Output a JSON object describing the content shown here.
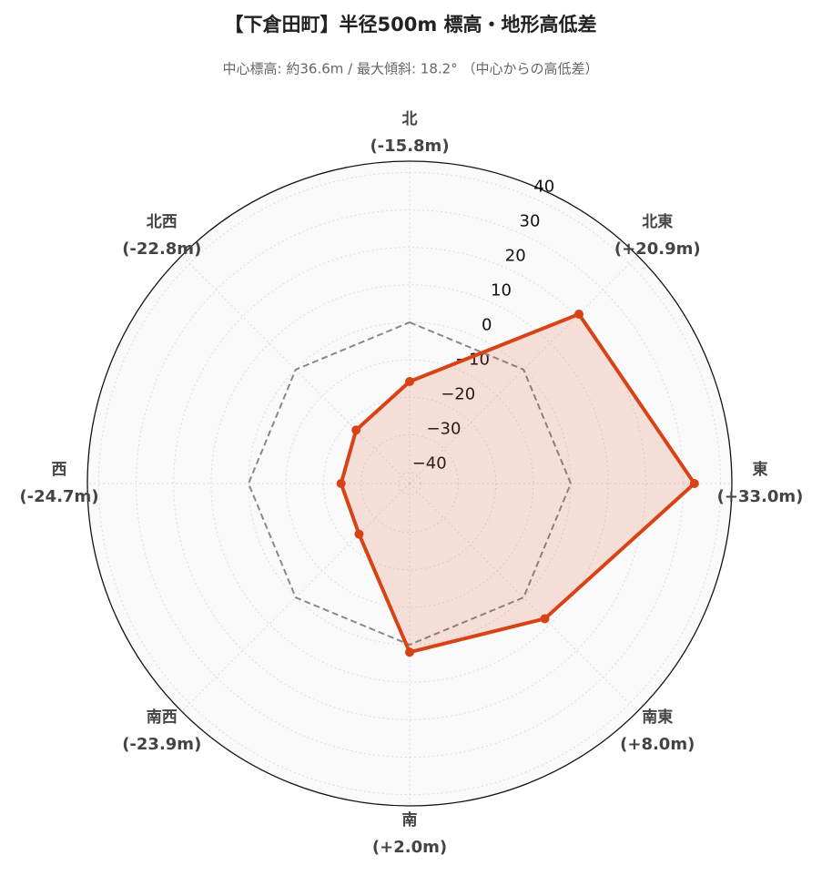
{
  "chart_data": {
    "type": "radar",
    "title": "【下倉田町】半径500m 標高・地形高低差",
    "subtitle": "中心標高: 約36.6m / 最大傾斜: 18.2° （中心からの高低差）",
    "categories": [
      "北",
      "北東",
      "東",
      "南東",
      "南",
      "南西",
      "西",
      "北西"
    ],
    "values": [
      -15.8,
      20.9,
      33.0,
      8.0,
      2.0,
      -23.9,
      -24.7,
      -22.8
    ],
    "value_labels": [
      "(-15.8m)",
      "(+20.9m)",
      "(+33.0m)",
      "(+8.0m)",
      "(+2.0m)",
      "(-23.9m)",
      "(-24.7m)",
      "(-22.8m)"
    ],
    "color": "#d84315",
    "reference_value": 0,
    "ylim": [
      -43,
      43
    ],
    "yticks": [
      {
        "value": -40,
        "label": "−40"
      },
      {
        "value": -30,
        "label": "−30"
      },
      {
        "value": -20,
        "label": "−20"
      },
      {
        "value": -10,
        "label": "−10"
      },
      0,
      10,
      20,
      30,
      40
    ],
    "grid": true
  }
}
